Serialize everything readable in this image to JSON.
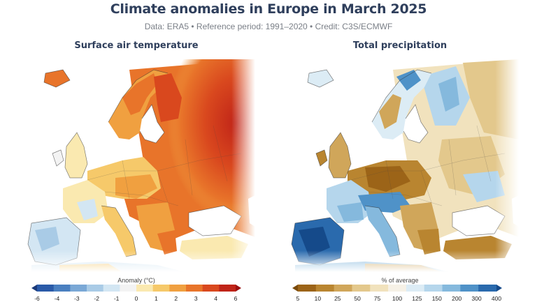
{
  "header": {
    "title": "Climate anomalies in Europe in March 2025",
    "subtitle": "Data: ERA5 • Reference period: 1991–2020 • Credit: C3S/ECMWF"
  },
  "left_panel": {
    "title": "Surface air temperature",
    "legend_title": "Anomaly (°C)",
    "ticks": [
      "-6",
      "-4",
      "-3",
      "-2",
      "-1",
      "0",
      "1",
      "2",
      "3",
      "4",
      "6"
    ],
    "colors": [
      "#1a3a7a",
      "#2a5aa8",
      "#4a7fc0",
      "#7aa8d6",
      "#a9cbe6",
      "#d3e6f3",
      "#f3f3f3",
      "#fae9b0",
      "#f6c96a",
      "#f0a040",
      "#e8742a",
      "#d9481e",
      "#c02418",
      "#9a1010"
    ]
  },
  "right_panel": {
    "title": "Total precipitation",
    "legend_title": "% of average",
    "ticks": [
      "5",
      "10",
      "25",
      "50",
      "75",
      "100",
      "125",
      "150",
      "200",
      "300",
      "400"
    ],
    "colors": [
      "#7a4a0a",
      "#9c6418",
      "#b98530",
      "#d0a65a",
      "#e3c88c",
      "#f1e2bd",
      "#f6f1e6",
      "#dcecf5",
      "#b5d6ec",
      "#85b9dd",
      "#4f92c8",
      "#2a6aad",
      "#154a8a"
    ]
  }
}
